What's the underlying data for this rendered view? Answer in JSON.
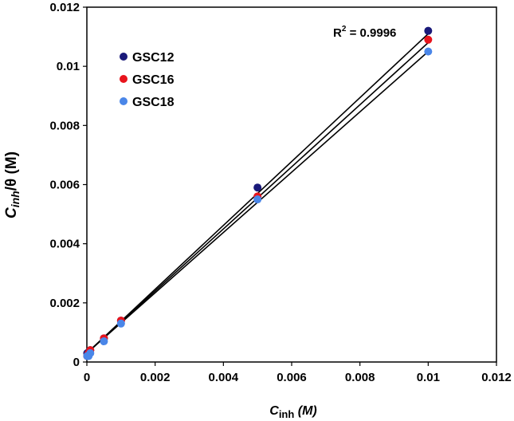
{
  "chart_data": {
    "type": "scatter",
    "xlabel_main": "C",
    "xlabel_sub": "inh",
    "xlabel_unit": "(M)",
    "ylabel_main": "C",
    "ylabel_sub": "inh",
    "ylabel_rest": "/θ (M)",
    "xlim": [
      0,
      0.012
    ],
    "ylim": [
      0,
      0.012
    ],
    "xticks": [
      "0",
      "0.002",
      "0.004",
      "0.006",
      "0.008",
      "0.01",
      "0.012"
    ],
    "yticks": [
      "0",
      "0.002",
      "0.004",
      "0.006",
      "0.008",
      "0.01",
      "0.012"
    ],
    "grid": false,
    "legend_position": "top-left",
    "annotation": {
      "prefix": "R",
      "sup": "2",
      "suffix": " = 0.9996"
    },
    "series": [
      {
        "name": "GSC12",
        "color": "#1a1a7a",
        "x": [
          1e-05,
          5e-05,
          0.0001,
          0.0005,
          0.001,
          0.005,
          0.01
        ],
        "y": [
          0.0003,
          0.0003,
          0.0004,
          0.0008,
          0.0014,
          0.0059,
          0.0112
        ],
        "fit": [
          [
            0,
            0.0003
          ],
          [
            0.01,
            0.0111
          ]
        ]
      },
      {
        "name": "GSC16",
        "color": "#e8141c",
        "x": [
          1e-05,
          5e-05,
          0.0001,
          0.0005,
          0.001,
          0.005,
          0.01
        ],
        "y": [
          0.0002,
          0.0003,
          0.0004,
          0.0008,
          0.0014,
          0.0056,
          0.0109
        ],
        "fit": [
          [
            0,
            0.0003
          ],
          [
            0.01,
            0.0108
          ]
        ]
      },
      {
        "name": "GSC18",
        "color": "#4a86e8",
        "x": [
          1e-05,
          5e-05,
          0.0001,
          0.0005,
          0.001,
          0.005,
          0.01
        ],
        "y": [
          0.0002,
          0.0002,
          0.0003,
          0.0007,
          0.0013,
          0.0055,
          0.0105
        ],
        "fit": [
          [
            0,
            0.0003
          ],
          [
            0.01,
            0.0105
          ]
        ]
      }
    ]
  }
}
